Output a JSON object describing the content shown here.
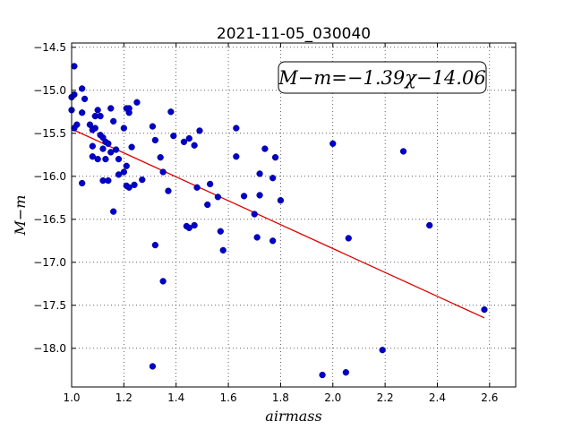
{
  "chart_data": {
    "type": "scatter",
    "title": "2021-11-05_030040",
    "xlabel": "airmass",
    "ylabel": "M−m",
    "xlim": [
      1.0,
      2.7
    ],
    "ylim": [
      -18.45,
      -14.45
    ],
    "y_inverted": true,
    "grid": true,
    "grid_style": "dotted",
    "xticks": [
      1.0,
      1.2,
      1.4,
      1.6,
      1.8,
      2.0,
      2.2,
      2.4,
      2.6
    ],
    "xtick_labels": [
      "1.0",
      "1.2",
      "1.4",
      "1.6",
      "1.8",
      "2.0",
      "2.2",
      "2.4",
      "2.6"
    ],
    "yticks": [
      -14.5,
      -15.0,
      -15.5,
      -16.0,
      -16.5,
      -17.0,
      -17.5,
      -18.0
    ],
    "ytick_labels": [
      "−14.5",
      "−15.0",
      "−15.5",
      "−16.0",
      "−16.5",
      "−17.0",
      "−17.5",
      "−18.0"
    ],
    "annotation": "M−m=−1.39χ−14.06",
    "annotation_placement": "top-right",
    "point_color": "#0000cc",
    "fit_color": "#dd0000",
    "fit": {
      "slope": -1.39,
      "intercept": -14.06,
      "x_range": [
        1.0,
        2.58
      ]
    },
    "points": [
      {
        "x": 1.01,
        "y": -14.72
      },
      {
        "x": 1.01,
        "y": -15.05
      },
      {
        "x": 1.0,
        "y": -15.08
      },
      {
        "x": 1.0,
        "y": -15.23
      },
      {
        "x": 1.02,
        "y": -15.4
      },
      {
        "x": 1.01,
        "y": -15.44
      },
      {
        "x": 1.04,
        "y": -14.98
      },
      {
        "x": 1.05,
        "y": -15.1
      },
      {
        "x": 1.04,
        "y": -15.26
      },
      {
        "x": 1.04,
        "y": -16.08
      },
      {
        "x": 1.07,
        "y": -15.4
      },
      {
        "x": 1.08,
        "y": -15.46
      },
      {
        "x": 1.09,
        "y": -15.3
      },
      {
        "x": 1.1,
        "y": -15.23
      },
      {
        "x": 1.09,
        "y": -15.44
      },
      {
        "x": 1.11,
        "y": -15.3
      },
      {
        "x": 1.11,
        "y": -15.52
      },
      {
        "x": 1.08,
        "y": -15.65
      },
      {
        "x": 1.08,
        "y": -15.77
      },
      {
        "x": 1.1,
        "y": -15.8
      },
      {
        "x": 1.12,
        "y": -15.55
      },
      {
        "x": 1.12,
        "y": -15.68
      },
      {
        "x": 1.13,
        "y": -15.6
      },
      {
        "x": 1.14,
        "y": -15.62
      },
      {
        "x": 1.13,
        "y": -15.8
      },
      {
        "x": 1.12,
        "y": -16.05
      },
      {
        "x": 1.14,
        "y": -16.05
      },
      {
        "x": 1.15,
        "y": -15.21
      },
      {
        "x": 1.16,
        "y": -15.36
      },
      {
        "x": 1.15,
        "y": -15.72
      },
      {
        "x": 1.17,
        "y": -15.69
      },
      {
        "x": 1.16,
        "y": -16.41
      },
      {
        "x": 1.18,
        "y": -15.8
      },
      {
        "x": 1.18,
        "y": -15.98
      },
      {
        "x": 1.2,
        "y": -15.44
      },
      {
        "x": 1.21,
        "y": -15.21
      },
      {
        "x": 1.22,
        "y": -15.26
      },
      {
        "x": 1.22,
        "y": -15.21
      },
      {
        "x": 1.23,
        "y": -15.66
      },
      {
        "x": 1.21,
        "y": -15.88
      },
      {
        "x": 1.2,
        "y": -15.95
      },
      {
        "x": 1.21,
        "y": -16.11
      },
      {
        "x": 1.22,
        "y": -16.13
      },
      {
        "x": 1.24,
        "y": -16.1
      },
      {
        "x": 1.25,
        "y": -15.14
      },
      {
        "x": 1.27,
        "y": -16.04
      },
      {
        "x": 1.31,
        "y": -15.42
      },
      {
        "x": 1.32,
        "y": -15.58
      },
      {
        "x": 1.34,
        "y": -15.78
      },
      {
        "x": 1.35,
        "y": -15.95
      },
      {
        "x": 1.37,
        "y": -16.17
      },
      {
        "x": 1.32,
        "y": -16.8
      },
      {
        "x": 1.35,
        "y": -17.22
      },
      {
        "x": 1.31,
        "y": -18.21
      },
      {
        "x": 1.38,
        "y": -15.25
      },
      {
        "x": 1.39,
        "y": -15.53
      },
      {
        "x": 1.43,
        "y": -15.6
      },
      {
        "x": 1.45,
        "y": -15.56
      },
      {
        "x": 1.49,
        "y": -15.47
      },
      {
        "x": 1.47,
        "y": -15.64
      },
      {
        "x": 1.48,
        "y": -16.13
      },
      {
        "x": 1.44,
        "y": -16.58
      },
      {
        "x": 1.45,
        "y": -16.6
      },
      {
        "x": 1.47,
        "y": -16.57
      },
      {
        "x": 1.52,
        "y": -16.33
      },
      {
        "x": 1.53,
        "y": -16.09
      },
      {
        "x": 1.56,
        "y": -16.24
      },
      {
        "x": 1.57,
        "y": -16.64
      },
      {
        "x": 1.58,
        "y": -16.86
      },
      {
        "x": 1.63,
        "y": -15.44
      },
      {
        "x": 1.63,
        "y": -15.77
      },
      {
        "x": 1.66,
        "y": -16.23
      },
      {
        "x": 1.7,
        "y": -16.44
      },
      {
        "x": 1.71,
        "y": -16.71
      },
      {
        "x": 1.72,
        "y": -15.97
      },
      {
        "x": 1.72,
        "y": -16.22
      },
      {
        "x": 1.74,
        "y": -15.68
      },
      {
        "x": 1.77,
        "y": -16.02
      },
      {
        "x": 1.77,
        "y": -16.75
      },
      {
        "x": 1.78,
        "y": -15.78
      },
      {
        "x": 1.8,
        "y": -16.28
      },
      {
        "x": 2.0,
        "y": -15.62
      },
      {
        "x": 1.96,
        "y": -18.31
      },
      {
        "x": 2.05,
        "y": -18.28
      },
      {
        "x": 2.06,
        "y": -16.72
      },
      {
        "x": 2.19,
        "y": -18.02
      },
      {
        "x": 2.27,
        "y": -15.71
      },
      {
        "x": 2.37,
        "y": -16.57
      },
      {
        "x": 2.58,
        "y": -17.55
      }
    ]
  }
}
